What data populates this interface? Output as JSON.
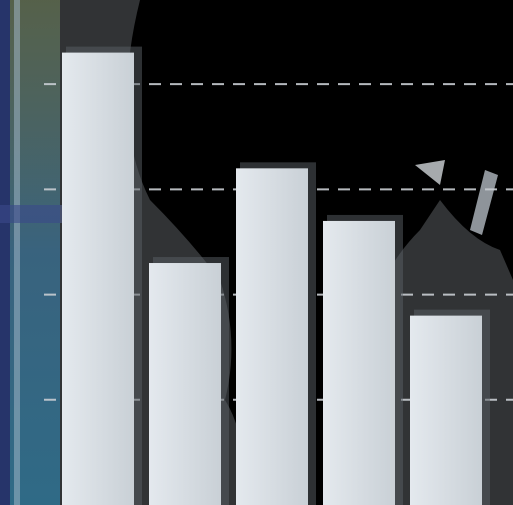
{
  "chart_data": {
    "type": "bar",
    "categories": [
      "",
      "",
      "",
      "",
      ""
    ],
    "values": [
      4.3,
      2.3,
      3.2,
      2.7,
      1.8
    ],
    "ylim": [
      0,
      4.8
    ],
    "grid": true,
    "gridlines": [
      1,
      2,
      3,
      4
    ],
    "title": "",
    "xlabel": "",
    "ylabel": ""
  },
  "colors": {
    "background": "#000000",
    "bar_fill": "#d8dde2",
    "bar_shadow": "#5a5f65",
    "gridline": "#c9ced3",
    "left_bar": "#4a7fa0",
    "left_edge": "#2a3f7a"
  }
}
